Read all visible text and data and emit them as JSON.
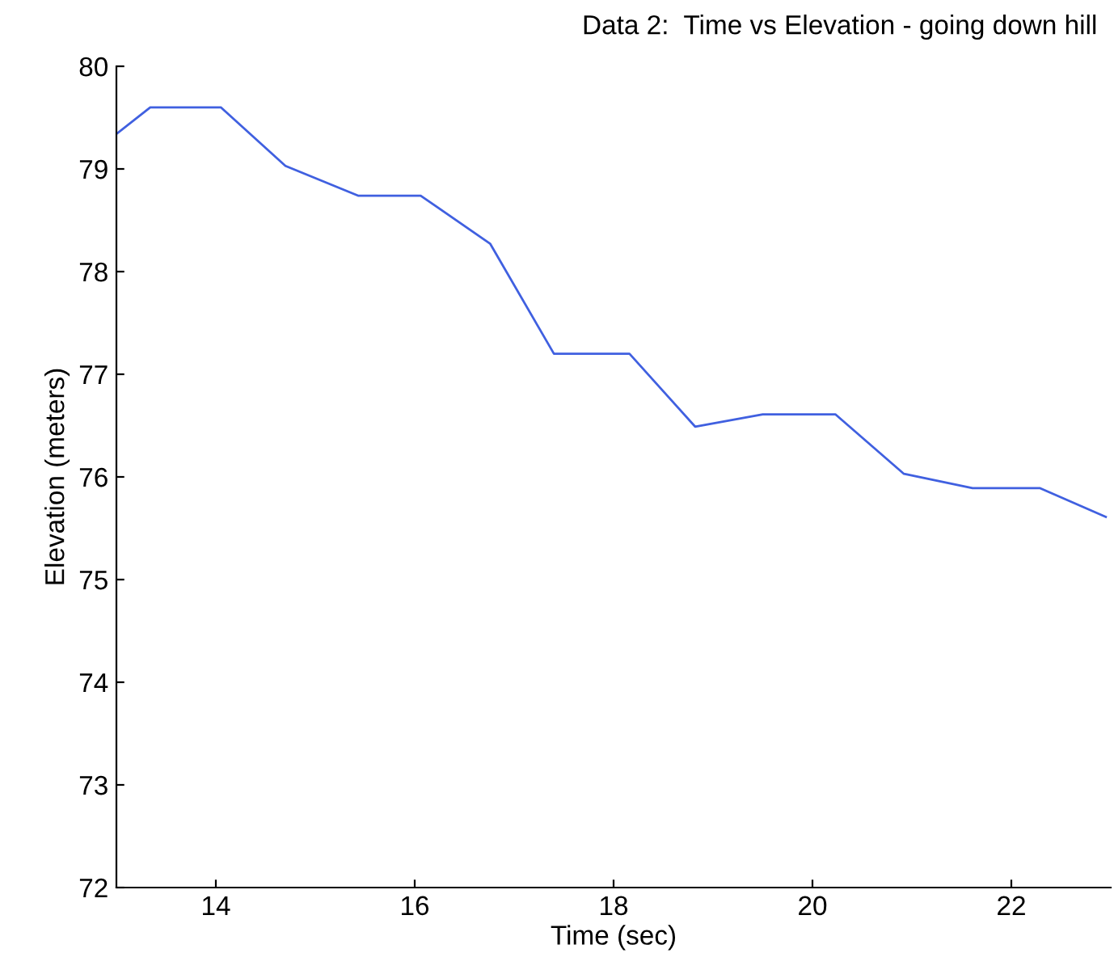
{
  "chart_data": {
    "type": "line",
    "title": "Data 2:  Time vs Elevation - going down hill",
    "xlabel": "Time (sec)",
    "ylabel": "Elevation (meters)",
    "x": [
      13.0,
      13.34,
      14.05,
      14.7,
      15.43,
      16.06,
      16.76,
      17.4,
      18.16,
      18.82,
      19.5,
      20.23,
      20.92,
      21.61,
      22.29,
      22.95
    ],
    "series": [
      {
        "color": "#4060e0",
        "values": [
          79.34,
          79.6,
          79.6,
          79.03,
          78.74,
          78.74,
          78.27,
          77.2,
          77.2,
          76.49,
          76.61,
          76.61,
          76.03,
          75.89,
          75.89,
          75.61
        ]
      }
    ],
    "xlim": [
      13,
      23
    ],
    "ylim": [
      72,
      80
    ],
    "xticks": [
      14,
      16,
      18,
      20,
      22
    ],
    "yticks": [
      72,
      73,
      74,
      75,
      76,
      77,
      78,
      79,
      80
    ],
    "grid": false,
    "legend": false,
    "marker": "none",
    "line_style": "solid"
  }
}
